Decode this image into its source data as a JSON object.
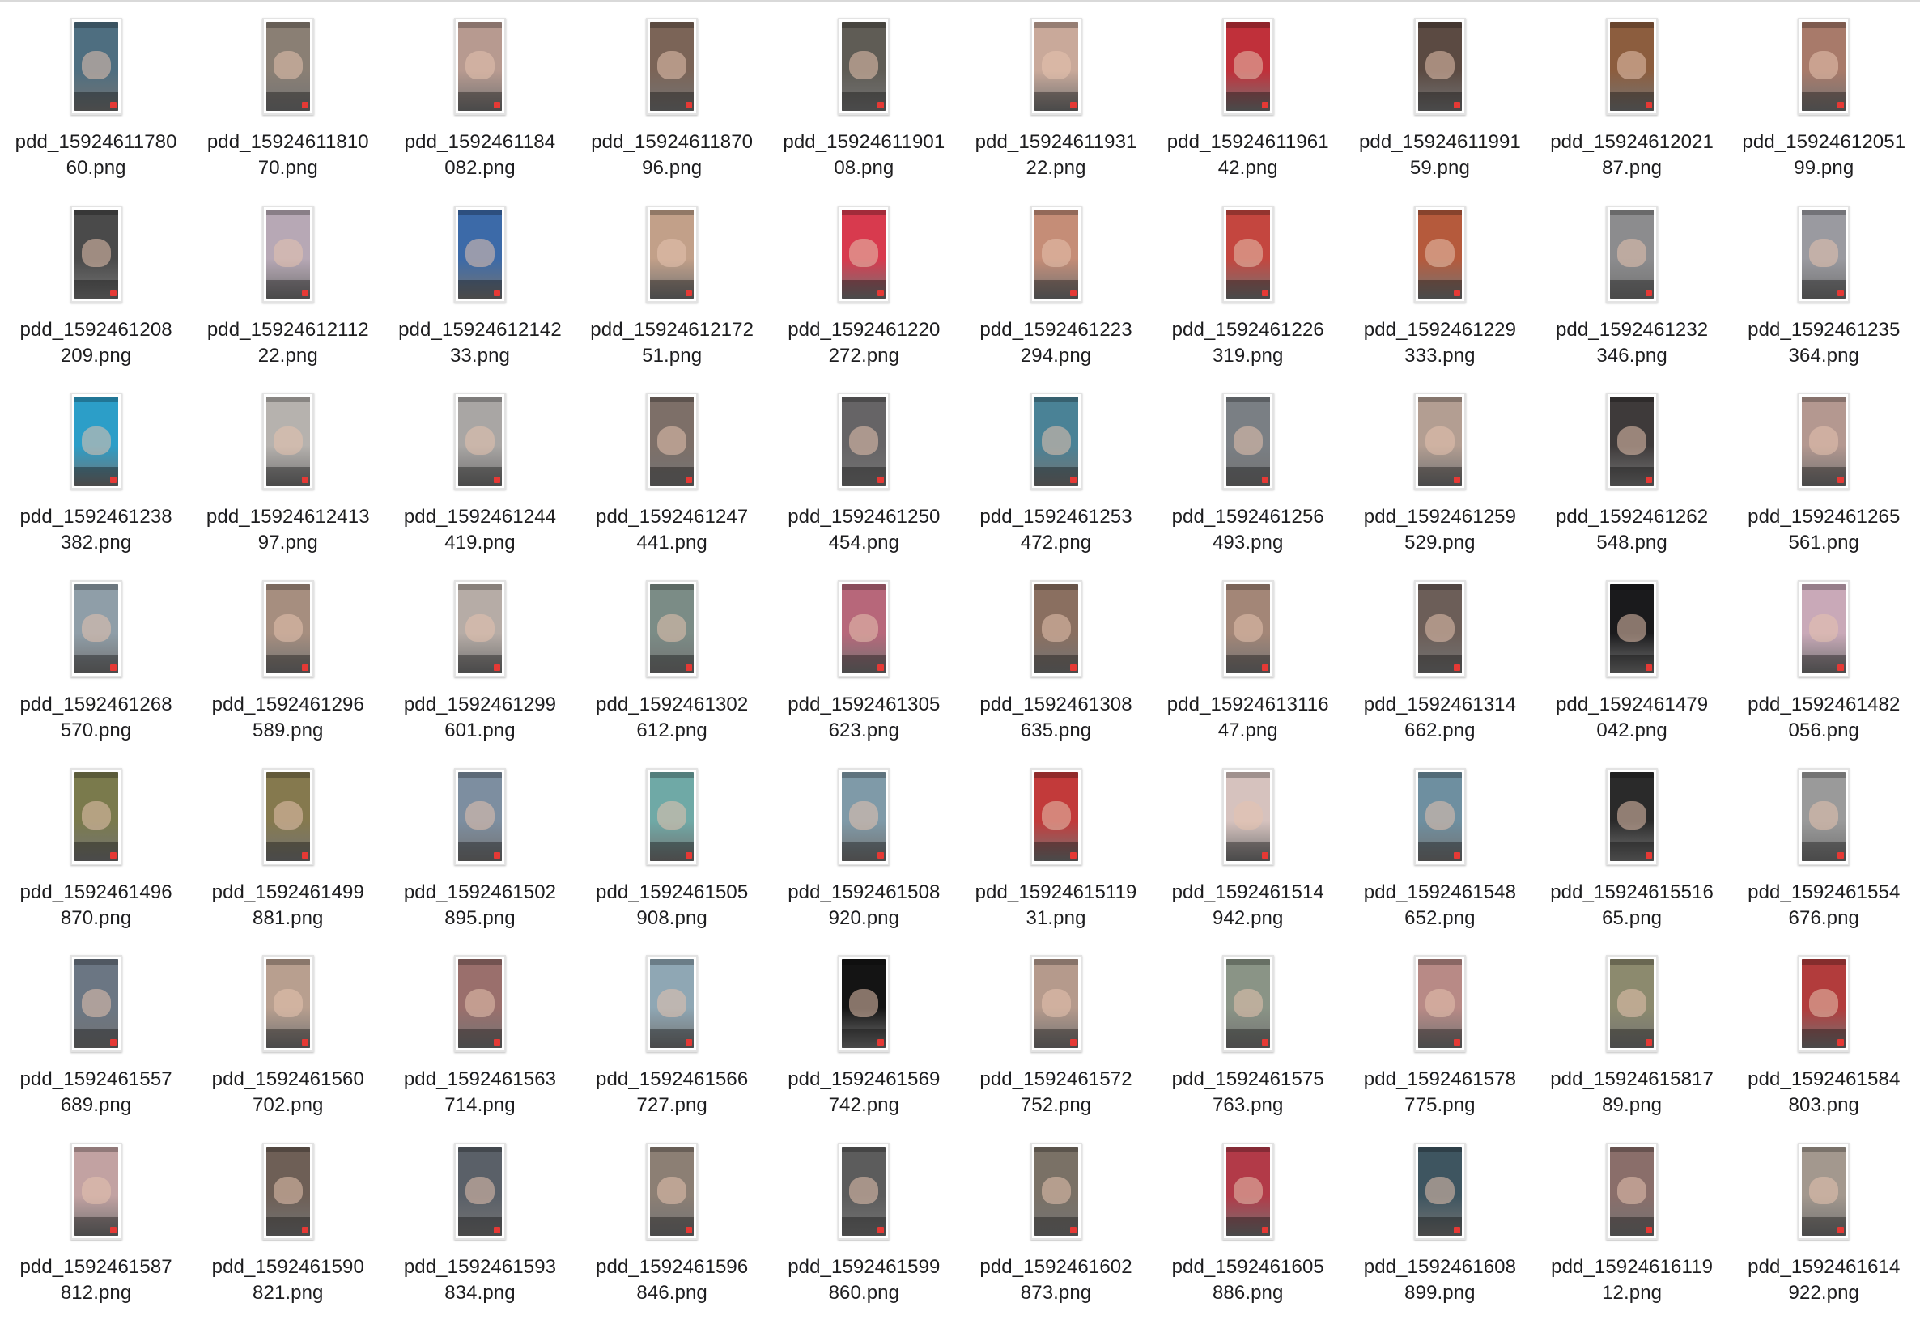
{
  "files": [
    {
      "name_line1": "pdd_15924611780",
      "name_line2": "60.png",
      "thumb": "#4e6e80"
    },
    {
      "name_line1": "pdd_15924611810",
      "name_line2": "70.png",
      "thumb": "#8a7f74"
    },
    {
      "name_line1": "pdd_1592461184",
      "name_line2": "082.png",
      "thumb": "#b79a90"
    },
    {
      "name_line1": "pdd_15924611870",
      "name_line2": "96.png",
      "thumb": "#7b6457"
    },
    {
      "name_line1": "pdd_15924611901",
      "name_line2": "08.png",
      "thumb": "#5f5c55"
    },
    {
      "name_line1": "pdd_15924611931",
      "name_line2": "22.png",
      "thumb": "#c9a99a"
    },
    {
      "name_line1": "pdd_15924611961",
      "name_line2": "42.png",
      "thumb": "#c0303a"
    },
    {
      "name_line1": "pdd_15924611991",
      "name_line2": "59.png",
      "thumb": "#5b4a42"
    },
    {
      "name_line1": "pdd_15924612021",
      "name_line2": "87.png",
      "thumb": "#8c5d3e"
    },
    {
      "name_line1": "pdd_15924612051",
      "name_line2": "99.png",
      "thumb": "#a87a6a"
    },
    {
      "name_line1": "pdd_1592461208",
      "name_line2": "209.png",
      "thumb": "#4a4a4a"
    },
    {
      "name_line1": "pdd_15924612112",
      "name_line2": "22.png",
      "thumb": "#b7a8b5"
    },
    {
      "name_line1": "pdd_15924612142",
      "name_line2": "33.png",
      "thumb": "#3c6aa8"
    },
    {
      "name_line1": "pdd_15924612172",
      "name_line2": "51.png",
      "thumb": "#c2a089"
    },
    {
      "name_line1": "pdd_1592461220",
      "name_line2": "272.png",
      "thumb": "#d83a4e"
    },
    {
      "name_line1": "pdd_1592461223",
      "name_line2": "294.png",
      "thumb": "#c58d77"
    },
    {
      "name_line1": "pdd_1592461226",
      "name_line2": "319.png",
      "thumb": "#c4463f"
    },
    {
      "name_line1": "pdd_1592461229",
      "name_line2": "333.png",
      "thumb": "#b55a3c"
    },
    {
      "name_line1": "pdd_1592461232",
      "name_line2": "346.png",
      "thumb": "#8c8c8e"
    },
    {
      "name_line1": "pdd_1592461235",
      "name_line2": "364.png",
      "thumb": "#9a9aa0"
    },
    {
      "name_line1": "pdd_1592461238",
      "name_line2": "382.png",
      "thumb": "#2c9ec8"
    },
    {
      "name_line1": "pdd_15924612413",
      "name_line2": "97.png",
      "thumb": "#b6b2ae"
    },
    {
      "name_line1": "pdd_1592461244",
      "name_line2": "419.png",
      "thumb": "#a9a6a4"
    },
    {
      "name_line1": "pdd_1592461247",
      "name_line2": "441.png",
      "thumb": "#7d6f68"
    },
    {
      "name_line1": "pdd_1592461250",
      "name_line2": "454.png",
      "thumb": "#666466"
    },
    {
      "name_line1": "pdd_1592461253",
      "name_line2": "472.png",
      "thumb": "#4a8296"
    },
    {
      "name_line1": "pdd_1592461256",
      "name_line2": "493.png",
      "thumb": "#7a7f84"
    },
    {
      "name_line1": "pdd_1592461259",
      "name_line2": "529.png",
      "thumb": "#b39e92"
    },
    {
      "name_line1": "pdd_1592461262",
      "name_line2": "548.png",
      "thumb": "#3e3a3a"
    },
    {
      "name_line1": "pdd_1592461265",
      "name_line2": "561.png",
      "thumb": "#b49890"
    },
    {
      "name_line1": "pdd_1592461268",
      "name_line2": "570.png",
      "thumb": "#8f9ea8"
    },
    {
      "name_line1": "pdd_1592461296",
      "name_line2": "589.png",
      "thumb": "#a68e7f"
    },
    {
      "name_line1": "pdd_1592461299",
      "name_line2": "601.png",
      "thumb": "#b6aca6"
    },
    {
      "name_line1": "pdd_1592461302",
      "name_line2": "612.png",
      "thumb": "#7b8c86"
    },
    {
      "name_line1": "pdd_1592461305",
      "name_line2": "623.png",
      "thumb": "#b7677a"
    },
    {
      "name_line1": "pdd_1592461308",
      "name_line2": "635.png",
      "thumb": "#8a6f60"
    },
    {
      "name_line1": "pdd_15924613116",
      "name_line2": "47.png",
      "thumb": "#a38677"
    },
    {
      "name_line1": "pdd_1592461314",
      "name_line2": "662.png",
      "thumb": "#6c5e58"
    },
    {
      "name_line1": "pdd_1592461479",
      "name_line2": "042.png",
      "thumb": "#1a1a1c"
    },
    {
      "name_line1": "pdd_1592461482",
      "name_line2": "056.png",
      "thumb": "#c9a9b8"
    },
    {
      "name_line1": "pdd_1592461496",
      "name_line2": "870.png",
      "thumb": "#7a7a4c"
    },
    {
      "name_line1": "pdd_1592461499",
      "name_line2": "881.png",
      "thumb": "#85794e"
    },
    {
      "name_line1": "pdd_1592461502",
      "name_line2": "895.png",
      "thumb": "#7d8ea0"
    },
    {
      "name_line1": "pdd_1592461505",
      "name_line2": "908.png",
      "thumb": "#6fa9a6"
    },
    {
      "name_line1": "pdd_1592461508",
      "name_line2": "920.png",
      "thumb": "#7f9aa8"
    },
    {
      "name_line1": "pdd_15924615119",
      "name_line2": "31.png",
      "thumb": "#c23a3a"
    },
    {
      "name_line1": "pdd_1592461514",
      "name_line2": "942.png",
      "thumb": "#d6c2be"
    },
    {
      "name_line1": "pdd_1592461548",
      "name_line2": "652.png",
      "thumb": "#6e8fa0"
    },
    {
      "name_line1": "pdd_15924615516",
      "name_line2": "65.png",
      "thumb": "#2a2a2a"
    },
    {
      "name_line1": "pdd_1592461554",
      "name_line2": "676.png",
      "thumb": "#9a9a9a"
    },
    {
      "name_line1": "pdd_1592461557",
      "name_line2": "689.png",
      "thumb": "#6b7683"
    },
    {
      "name_line1": "pdd_1592461560",
      "name_line2": "702.png",
      "thumb": "#b89f8f"
    },
    {
      "name_line1": "pdd_1592461563",
      "name_line2": "714.png",
      "thumb": "#9a6f6c"
    },
    {
      "name_line1": "pdd_1592461566",
      "name_line2": "727.png",
      "thumb": "#8fa7b4"
    },
    {
      "name_line1": "pdd_1592461569",
      "name_line2": "742.png",
      "thumb": "#141414"
    },
    {
      "name_line1": "pdd_1592461572",
      "name_line2": "752.png",
      "thumb": "#b59a8c"
    },
    {
      "name_line1": "pdd_1592461575",
      "name_line2": "763.png",
      "thumb": "#8a9486"
    },
    {
      "name_line1": "pdd_1592461578",
      "name_line2": "775.png",
      "thumb": "#b88a86"
    },
    {
      "name_line1": "pdd_15924615817",
      "name_line2": "89.png",
      "thumb": "#8c8a6e"
    },
    {
      "name_line1": "pdd_1592461584",
      "name_line2": "803.png",
      "thumb": "#b23c3c"
    },
    {
      "name_line1": "pdd_1592461587",
      "name_line2": "812.png",
      "thumb": "#c2a2a2"
    },
    {
      "name_line1": "pdd_1592461590",
      "name_line2": "821.png",
      "thumb": "#6e5f56"
    },
    {
      "name_line1": "pdd_1592461593",
      "name_line2": "834.png",
      "thumb": "#5a6068"
    },
    {
      "name_line1": "pdd_1592461596",
      "name_line2": "846.png",
      "thumb": "#8c7f74"
    },
    {
      "name_line1": "pdd_1592461599",
      "name_line2": "860.png",
      "thumb": "#5c5c5c"
    },
    {
      "name_line1": "pdd_1592461602",
      "name_line2": "873.png",
      "thumb": "#7a7166"
    },
    {
      "name_line1": "pdd_1592461605",
      "name_line2": "886.png",
      "thumb": "#b23a48"
    },
    {
      "name_line1": "pdd_1592461608",
      "name_line2": "899.png",
      "thumb": "#3e5560"
    },
    {
      "name_line1": "pdd_15924616119",
      "name_line2": "12.png",
      "thumb": "#8a6e6a"
    },
    {
      "name_line1": "pdd_1592461614",
      "name_line2": "922.png",
      "thumb": "#a3988e"
    }
  ]
}
